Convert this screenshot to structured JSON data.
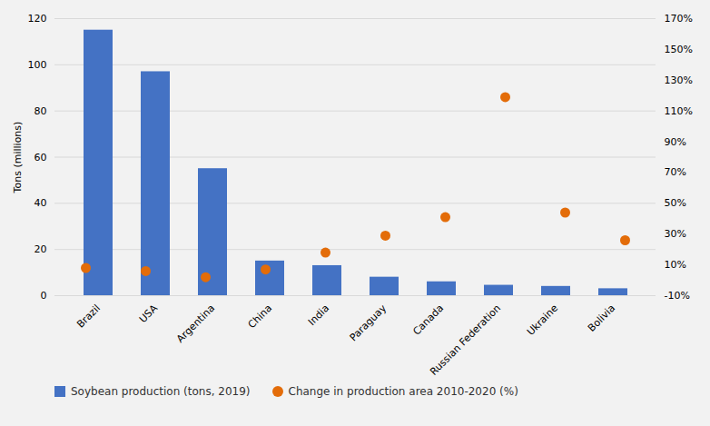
{
  "chart_data": {
    "type": "bar",
    "categories": [
      "Brazil",
      "USA",
      "Argentina",
      "China",
      "India",
      "Paraguay",
      "Canada",
      "Russian Federation",
      "Ukraine",
      "Bolivia"
    ],
    "ylabel": "Tons (millions)",
    "series": [
      {
        "name": "Soybean production (tons, 2019)",
        "type": "bar",
        "color": "#4472C4",
        "values": [
          115,
          97,
          55,
          15,
          13,
          8,
          6,
          4.5,
          4,
          3
        ]
      },
      {
        "name": "Change in production area 2010-2020 (%)",
        "type": "scatter",
        "axis": "y2",
        "color": "#E36C09",
        "values": [
          8,
          6,
          2,
          7,
          18,
          29,
          41,
          119,
          44,
          26
        ]
      }
    ],
    "ylim": [
      0,
      120
    ],
    "yticks": [
      0,
      20,
      40,
      60,
      80,
      100,
      120
    ],
    "y2lim": [
      -10,
      170
    ],
    "y2ticks": [
      {
        "value": -10,
        "label": "-10%"
      },
      {
        "value": 10,
        "label": "10%"
      },
      {
        "value": 30,
        "label": "30%"
      },
      {
        "value": 50,
        "label": "50%"
      },
      {
        "value": 70,
        "label": "70%"
      },
      {
        "value": 90,
        "label": "90%"
      },
      {
        "value": 110,
        "label": "110%"
      },
      {
        "value": 130,
        "label": "130%"
      },
      {
        "value": 150,
        "label": "150%"
      },
      {
        "value": 170,
        "label": "170%"
      }
    ],
    "grid": true,
    "legend": "bottom"
  }
}
